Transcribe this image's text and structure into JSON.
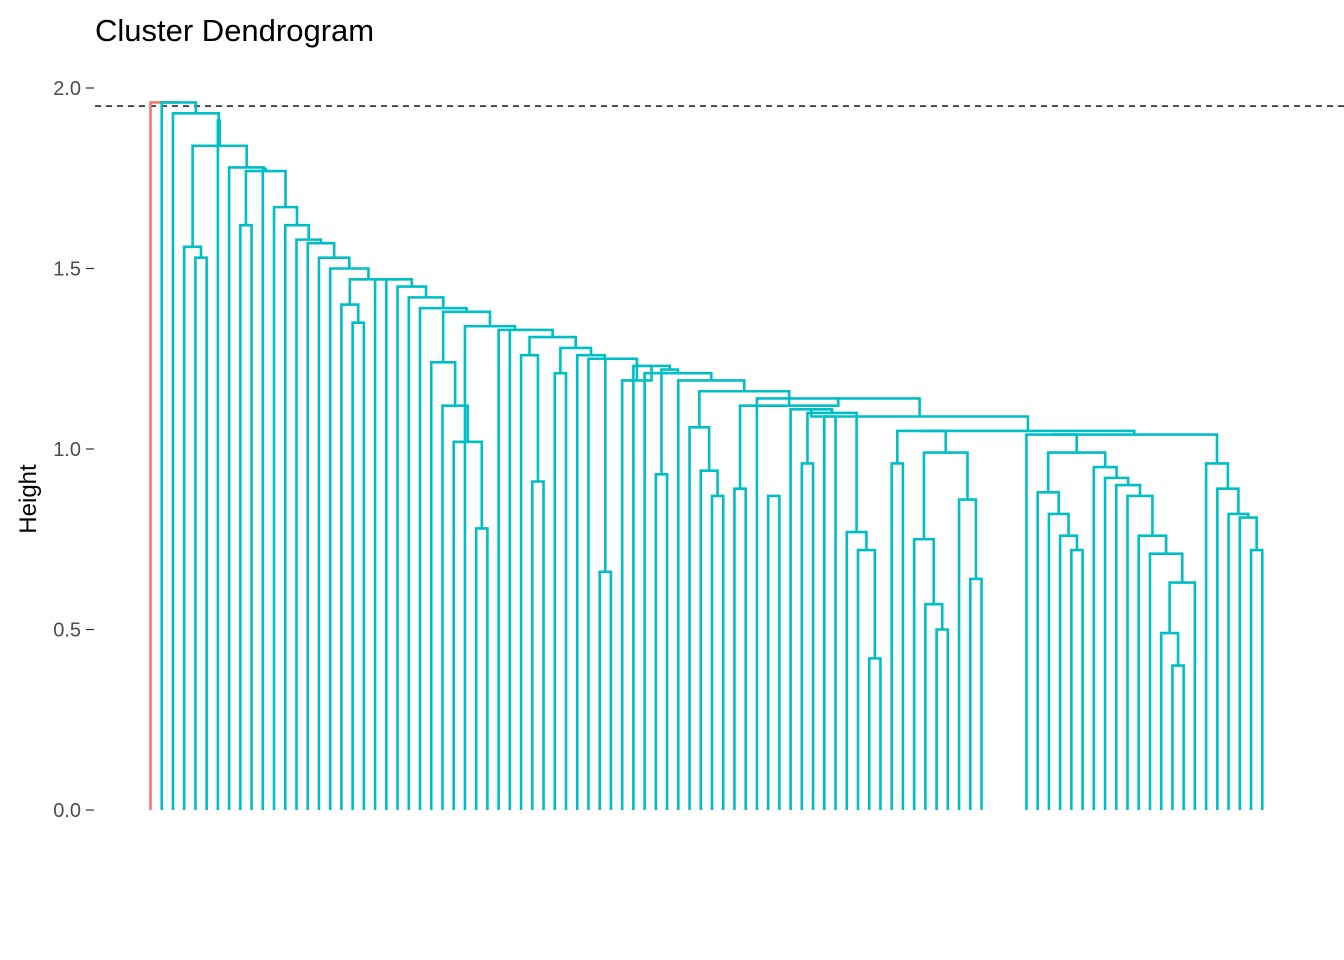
{
  "chart_data": {
    "type": "dendrogram",
    "title": "Cluster Dendrogram",
    "ylabel": "Height",
    "xlabel": "",
    "ylim": [
      0,
      2.0
    ],
    "y_ticks": [
      {
        "value": 0.0,
        "label": "0.0"
      },
      {
        "value": 0.5,
        "label": "0.5"
      },
      {
        "value": 1.0,
        "label": "1.0"
      },
      {
        "value": 1.5,
        "label": "1.5"
      },
      {
        "value": 2.0,
        "label": "2.0"
      }
    ],
    "cut_height": 1.95,
    "grid": false,
    "leaf_count": 100,
    "cluster_colors": {
      "red": "#F8766D",
      "teal": "#00BFC4"
    },
    "top_merge_height": 1.96,
    "merge_heights": [
      1.96,
      1.93,
      1.91,
      1.84,
      1.56,
      1.53,
      1.78,
      1.77,
      1.67,
      1.62,
      1.62,
      1.58,
      1.57,
      1.53,
      1.5,
      1.47,
      1.47,
      1.4,
      1.35,
      1.47,
      1.45,
      1.42,
      1.39,
      1.38,
      1.24,
      1.12,
      1.02,
      0.78,
      1.34,
      1.33,
      1.33,
      1.26,
      0.91,
      1.31,
      1.21,
      1.28,
      1.26,
      0.66,
      1.25,
      1.25,
      1.19,
      1.23,
      0.93,
      1.22,
      1.21,
      1.19,
      1.16,
      1.06,
      0.94,
      0.87,
      1.14,
      1.12,
      0.89,
      1.11,
      0.87,
      1.1,
      0.96,
      1.09,
      0.77,
      0.72,
      0.42,
      1.09,
      1.06,
      1.05,
      0.96,
      1.05,
      0.75,
      0.57,
      0.5,
      0.99,
      0.86,
      0.64,
      1.05,
      1.04,
      0.99,
      0.88,
      0.82,
      0.76,
      0.72,
      0.95,
      0.92,
      0.9,
      0.87,
      0.76,
      0.71,
      0.63,
      0.49,
      0.4,
      0.54,
      1.04,
      0.96,
      0.89,
      0.82,
      0.81,
      0.72
    ]
  }
}
